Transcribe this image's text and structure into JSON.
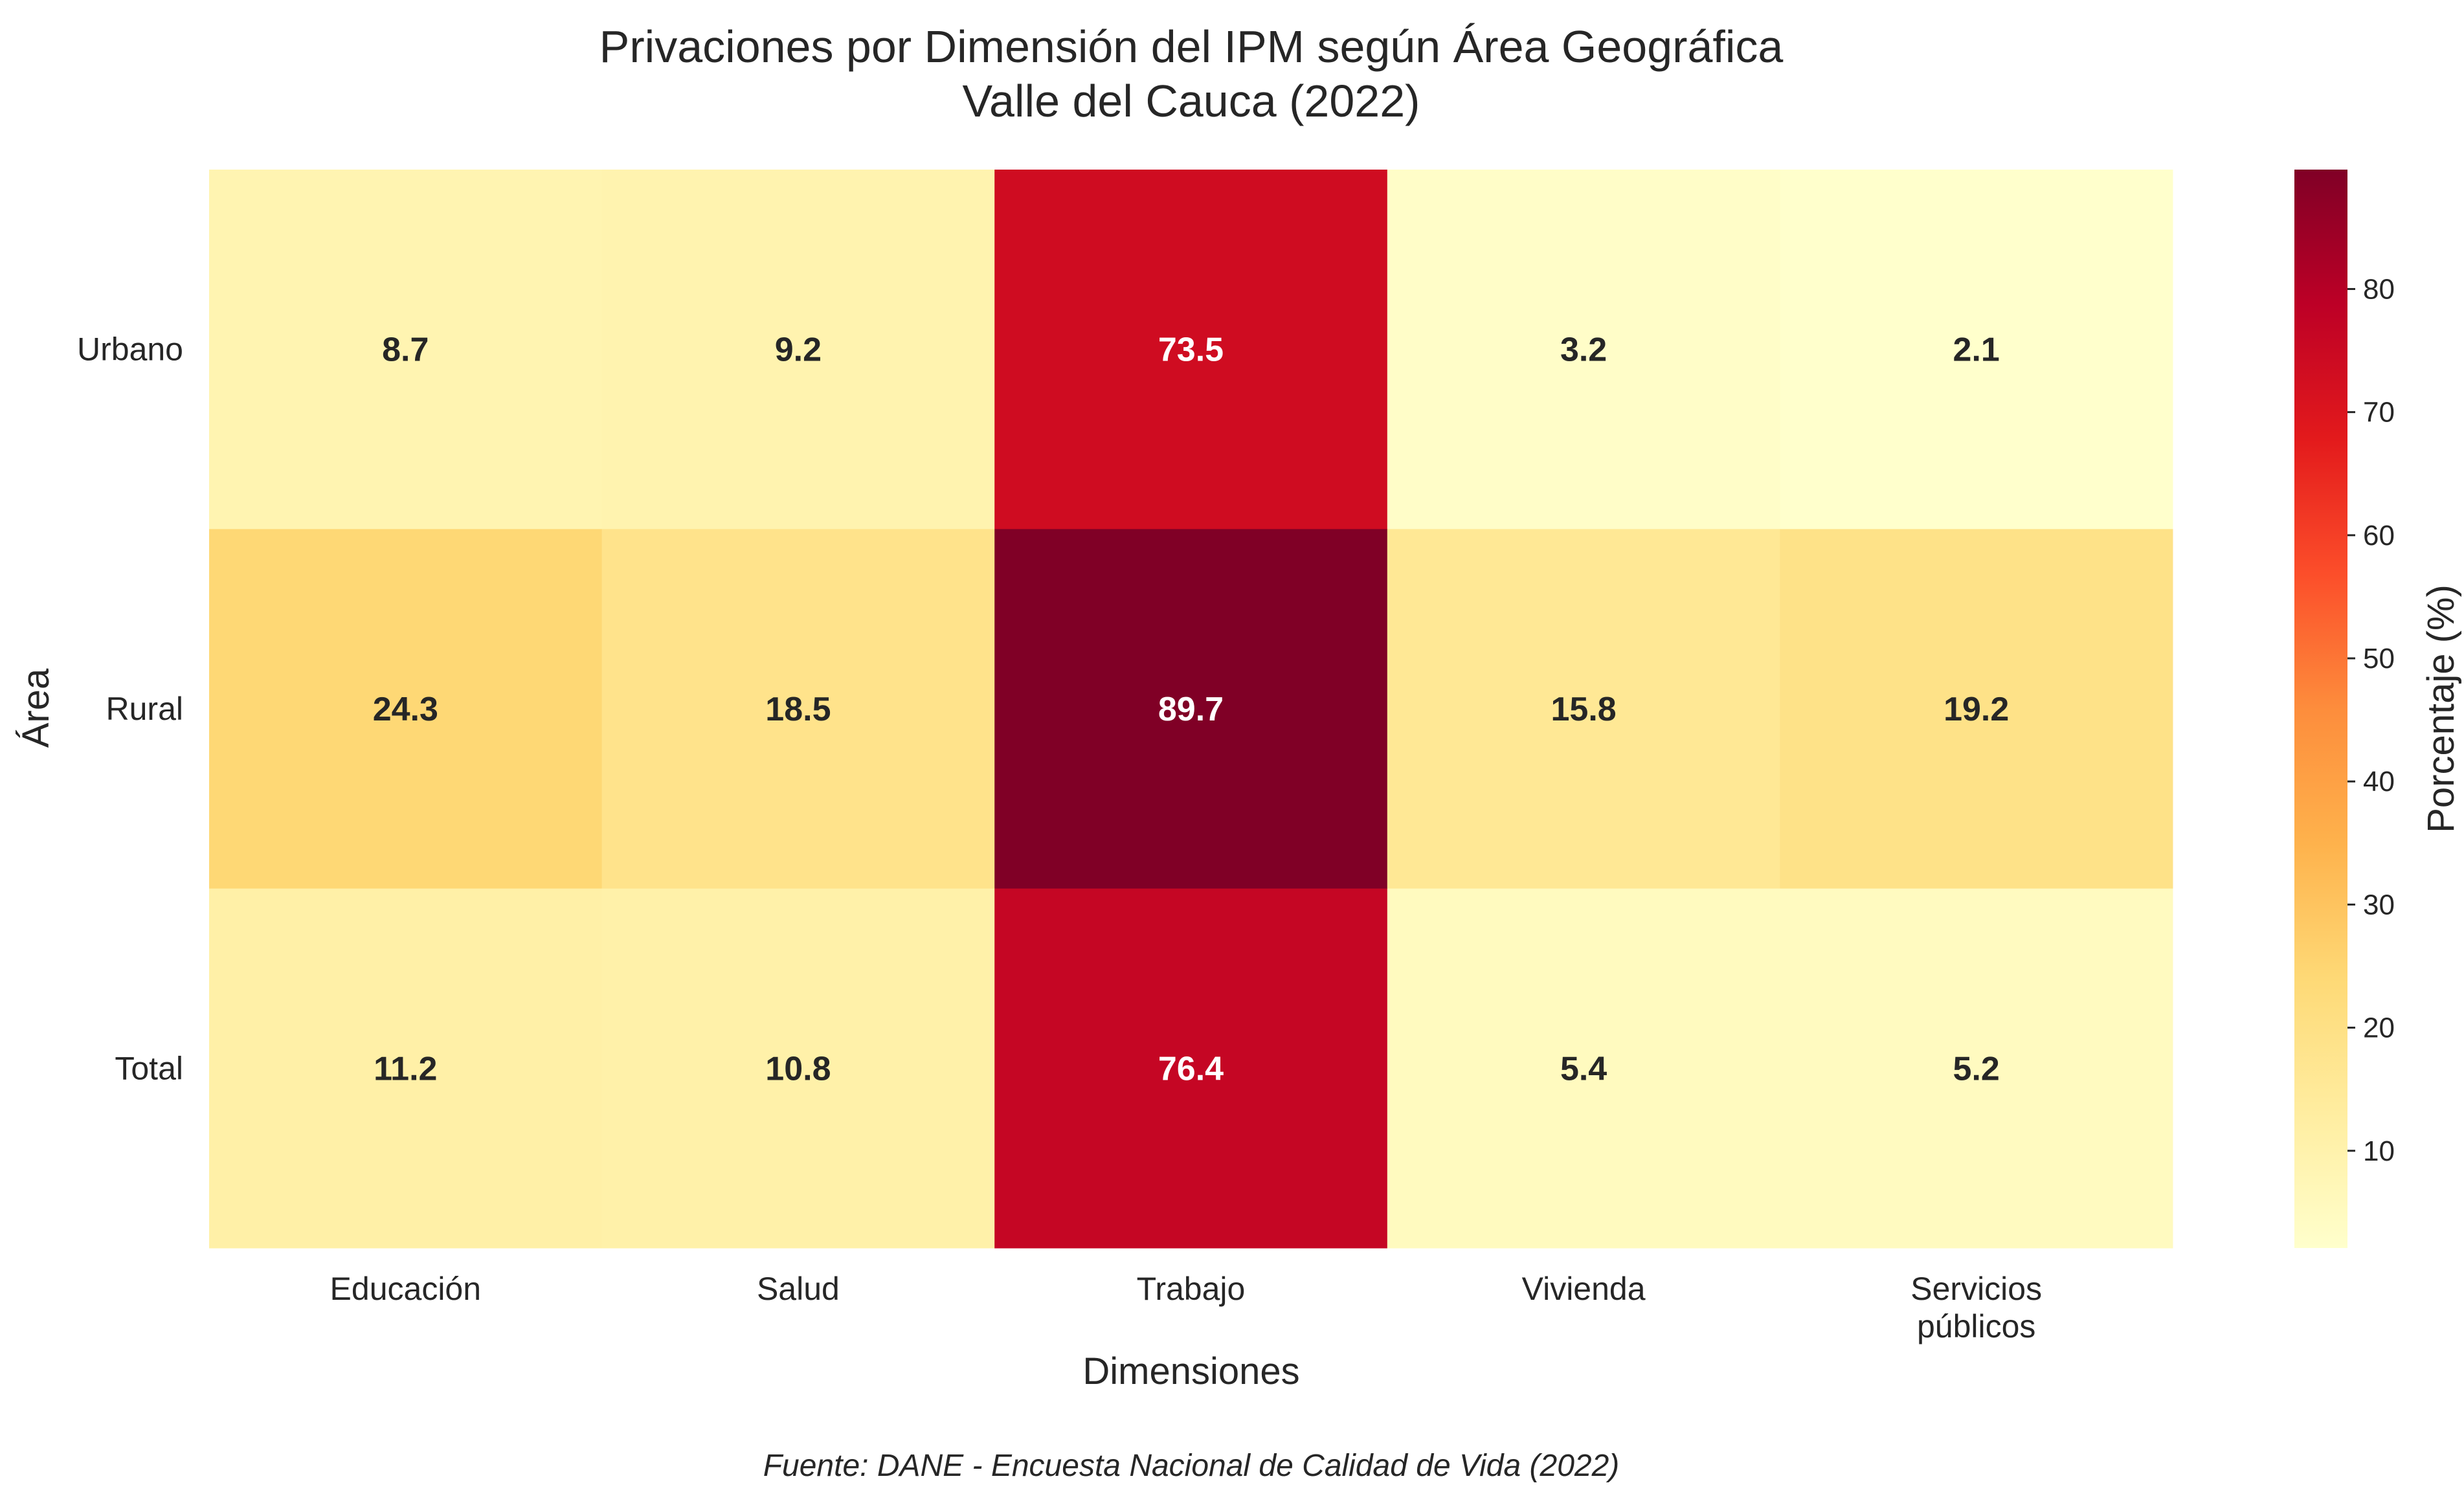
{
  "chart_data": {
    "type": "heatmap",
    "title": "Privaciones por Dimensión del IPM según Área Geográfica",
    "subtitle": "Valle del Cauca (2022)",
    "xlabel": "Dimensiones",
    "ylabel": "Área",
    "x_categories": [
      [
        "Educación"
      ],
      [
        "Salud"
      ],
      [
        "Trabajo"
      ],
      [
        "Vivienda"
      ],
      [
        "Servicios",
        "públicos"
      ]
    ],
    "y_categories": [
      "Urbano",
      "Rural",
      "Total"
    ],
    "values": [
      [
        8.7,
        9.2,
        73.5,
        3.2,
        2.1
      ],
      [
        24.3,
        18.5,
        89.7,
        15.8,
        19.2
      ],
      [
        11.2,
        10.8,
        76.4,
        5.4,
        5.2
      ]
    ],
    "colorbar": {
      "label": "Porcentaje (%)",
      "colormap": "YlOrRd",
      "vmin": 2.1,
      "vmax": 89.7,
      "ticks": [
        10,
        20,
        30,
        40,
        50,
        60,
        70,
        80
      ]
    },
    "annotation_format": "0.1f",
    "grid": false
  },
  "source_note": "Fuente: DANE - Encuesta Nacional de Calidad de Vida (2022)"
}
